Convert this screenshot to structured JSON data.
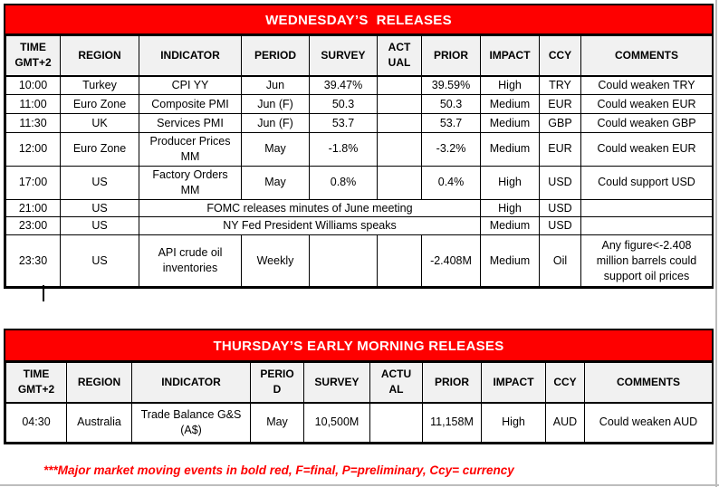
{
  "tables": [
    {
      "title": "WEDNESDAY’S  RELEASES",
      "columns": [
        "TIME\nGMT+2",
        "REGION",
        "INDICATOR",
        "PERIOD",
        "SURVEY",
        "ACT\nUAL",
        "PRIOR",
        "IMPACT",
        "CCY",
        "COMMENTS"
      ],
      "rows": [
        [
          {
            "text": "10:00"
          },
          {
            "text": "Turkey"
          },
          {
            "text": "CPI YY"
          },
          {
            "text": "Jun"
          },
          {
            "text": "39.47%"
          },
          {
            "text": ""
          },
          {
            "text": "39.59%"
          },
          {
            "text": "High"
          },
          {
            "text": "TRY"
          },
          {
            "text": "Could weaken TRY"
          }
        ],
        [
          {
            "text": "11:00"
          },
          {
            "text": "Euro Zone"
          },
          {
            "text": "Composite PMI"
          },
          {
            "text": "Jun (F)"
          },
          {
            "text": "50.3"
          },
          {
            "text": ""
          },
          {
            "text": "50.3"
          },
          {
            "text": "Medium"
          },
          {
            "text": "EUR"
          },
          {
            "text": "Could weaken EUR"
          }
        ],
        [
          {
            "text": "11:30"
          },
          {
            "text": "UK"
          },
          {
            "text": "Services PMI"
          },
          {
            "text": "Jun (F)"
          },
          {
            "text": "53.7"
          },
          {
            "text": ""
          },
          {
            "text": "53.7"
          },
          {
            "text": "Medium"
          },
          {
            "text": "GBP"
          },
          {
            "text": "Could weaken GBP"
          }
        ],
        [
          {
            "text": "12:00"
          },
          {
            "text": "Euro Zone"
          },
          {
            "text": "Producer Prices MM"
          },
          {
            "text": "May"
          },
          {
            "text": "-1.8%"
          },
          {
            "text": ""
          },
          {
            "text": "-3.2%"
          },
          {
            "text": "Medium"
          },
          {
            "text": "EUR"
          },
          {
            "text": "Could weaken EUR"
          }
        ],
        [
          {
            "text": "17:00"
          },
          {
            "text": "US"
          },
          {
            "text": "Factory Orders MM"
          },
          {
            "text": "May"
          },
          {
            "text": "0.8%"
          },
          {
            "text": ""
          },
          {
            "text": "0.4%"
          },
          {
            "text": "High"
          },
          {
            "text": "USD"
          },
          {
            "text": "Could support USD"
          }
        ],
        [
          {
            "text": "21:00"
          },
          {
            "text": "US"
          },
          {
            "text": "FOMC releases minutes of June meeting",
            "colspan": 5
          },
          {
            "text": "High"
          },
          {
            "text": "USD"
          },
          {
            "text": ""
          }
        ],
        [
          {
            "text": "23:00"
          },
          {
            "text": "US"
          },
          {
            "text": "NY Fed President Williams speaks",
            "colspan": 5
          },
          {
            "text": "Medium"
          },
          {
            "text": "USD"
          },
          {
            "text": ""
          }
        ],
        [
          {
            "text": "23:30"
          },
          {
            "text": "US"
          },
          {
            "text": "API crude oil inventories"
          },
          {
            "text": "Weekly"
          },
          {
            "text": ""
          },
          {
            "text": ""
          },
          {
            "text": "-2.408M"
          },
          {
            "text": "Medium"
          },
          {
            "text": "Oil"
          },
          {
            "text": "Any figure<-2.408 million barrels could support oil prices"
          }
        ]
      ]
    },
    {
      "title": "THURSDAY’S EARLY MORNING RELEASES",
      "columns": [
        "TIME\nGMT+2",
        "REGION",
        "INDICATOR",
        "PERIO\nD",
        "SURVEY",
        "ACTU\nAL",
        "PRIOR",
        "IMPACT",
        "CCY",
        "COMMENTS"
      ],
      "rows": [
        [
          {
            "text": "04:30"
          },
          {
            "text": "Australia"
          },
          {
            "text": "Trade Balance G&S (A$)"
          },
          {
            "text": "May"
          },
          {
            "text": "10,500M"
          },
          {
            "text": ""
          },
          {
            "text": "11,158M"
          },
          {
            "text": "High"
          },
          {
            "text": "AUD"
          },
          {
            "text": "Could weaken AUD"
          }
        ]
      ]
    }
  ],
  "footer": {
    "note": "***Major market moving events in bold red, F=final, P=preliminary, Ccy= currency"
  },
  "colors": {
    "banner_red": "#fe0000",
    "banner_text": "#ffffff",
    "footer_red": "#fe0000",
    "table_border": "#000000",
    "header_fill": "#f1f1f1",
    "screen_edge_gray": "#bdbdbd"
  }
}
